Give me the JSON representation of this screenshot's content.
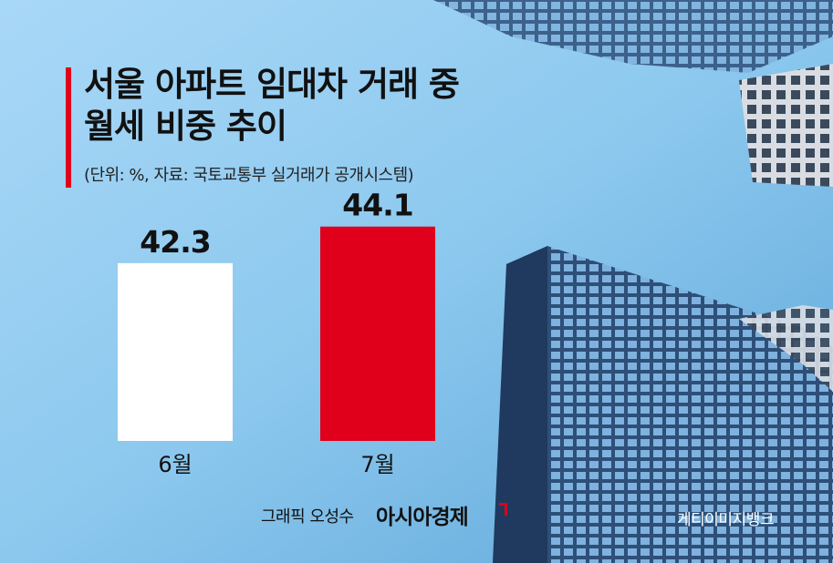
{
  "title_line1": "서울 아파트 임대차 거래 중",
  "title_line2": "월세 비중 추이",
  "subtitle": "(단위: %, 자료: 국토교통부 실거래가 공개시스템)",
  "credit": "그래픽 오성수",
  "brand": "아시아경제",
  "photo_credit": "게티이미지뱅크",
  "colors": {
    "accent": "#e0001b",
    "bar1": "#ffffff",
    "bar2": "#e0001b",
    "sky": "#8cc8ee"
  },
  "chart_data": {
    "type": "bar",
    "categories": [
      "6월",
      "7월"
    ],
    "values": [
      42.3,
      44.1
    ],
    "value_labels": [
      "42.3",
      "44.1"
    ],
    "title": "서울 아파트 임대차 거래 중 월세 비중 추이",
    "unit": "%",
    "grid": false
  }
}
